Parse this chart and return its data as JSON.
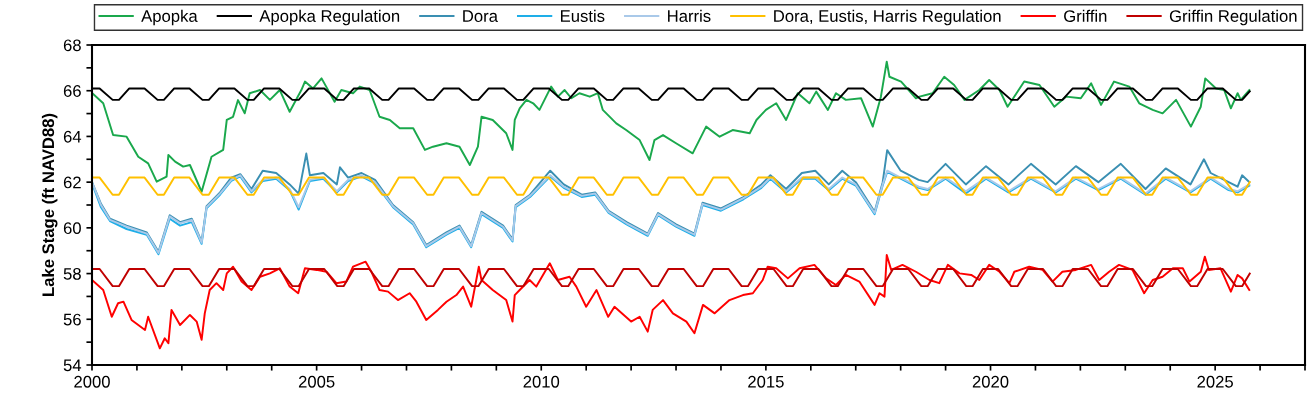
{
  "chart_data": {
    "type": "line",
    "ylabel": "Lake Stage (ft NAVD88)",
    "xlim": [
      2000,
      2027
    ],
    "ylim": [
      54,
      68
    ],
    "xticks": [
      2000,
      {
        "value": 2001,
        "label": null
      },
      {
        "value": 2002,
        "label": null
      },
      {
        "value": 2003,
        "label": null
      },
      {
        "value": 2004,
        "label": null
      },
      2005,
      {
        "value": 2006,
        "label": null
      },
      {
        "value": 2007,
        "label": null
      },
      {
        "value": 2008,
        "label": null
      },
      {
        "value": 2009,
        "label": null
      },
      2010,
      {
        "value": 2011,
        "label": null
      },
      {
        "value": 2012,
        "label": null
      },
      {
        "value": 2013,
        "label": null
      },
      {
        "value": 2014,
        "label": null
      },
      2015,
      {
        "value": 2016,
        "label": null
      },
      {
        "value": 2017,
        "label": null
      },
      {
        "value": 2018,
        "label": null
      },
      {
        "value": 2019,
        "label": null
      },
      2020,
      {
        "value": 2021,
        "label": null
      },
      {
        "value": 2022,
        "label": null
      },
      {
        "value": 2023,
        "label": null
      },
      {
        "value": 2024,
        "label": null
      },
      2025,
      {
        "value": 2026,
        "label": null
      },
      {
        "value": 2027,
        "label": null
      }
    ],
    "yticks": [
      54,
      {
        "value": 55,
        "label": null
      },
      56,
      {
        "value": 57,
        "label": null
      },
      58,
      {
        "value": 59,
        "label": null
      },
      60,
      {
        "value": 61,
        "label": null
      },
      62,
      {
        "value": 63,
        "label": null
      },
      64,
      {
        "value": 65,
        "label": null
      },
      66,
      {
        "value": 67,
        "label": null
      },
      68
    ],
    "grid": false,
    "legend": "top",
    "marker": "none",
    "line_style": "solid",
    "x": [
      2000.0,
      2000.17,
      2000.46,
      2000.6,
      2000.83,
      2001.17,
      2001.46,
      2001.6,
      2001.83,
      2002.17,
      2002.46,
      2002.6,
      2002.83,
      2003.17,
      2003.46,
      2003.6,
      2003.83,
      2004.17,
      2004.46,
      2004.6,
      2004.83,
      2005.17,
      2005.46,
      2005.6,
      2005.83,
      2006.17,
      2006.46,
      2006.6,
      2006.83,
      2007.17,
      2007.46,
      2007.6,
      2007.83,
      2008.17,
      2008.46,
      2008.6,
      2008.83,
      2009.17,
      2009.46,
      2009.6,
      2009.83,
      2010.17,
      2010.46,
      2010.6,
      2010.83,
      2011.17,
      2011.46,
      2011.6,
      2011.83,
      2012.17,
      2012.46,
      2012.6,
      2012.83,
      2013.17,
      2013.46,
      2013.6,
      2013.83,
      2014.17,
      2014.46,
      2014.6,
      2014.83,
      2015.17,
      2015.46,
      2015.6,
      2015.83,
      2016.17,
      2016.46,
      2016.6,
      2016.83,
      2017.17,
      2017.46,
      2017.6,
      2017.83,
      2018.17,
      2018.46,
      2018.6,
      2018.83,
      2019.17,
      2019.46,
      2019.6,
      2019.83,
      2020.17,
      2020.46,
      2020.6,
      2020.83,
      2021.17,
      2021.46,
      2021.6,
      2021.83,
      2022.17,
      2022.46,
      2022.6,
      2022.83,
      2023.17,
      2023.46,
      2023.6,
      2023.83,
      2024.17,
      2024.46,
      2024.6,
      2024.83,
      2025.17,
      2025.46,
      2025.6,
      2025.77
    ],
    "series": [
      {
        "name": "Apopka",
        "color": "#1aa84c",
        "x": [
          2000.0,
          2000.25,
          2000.47,
          2000.77,
          2001.03,
          2001.25,
          2001.44,
          2001.66,
          2001.7,
          2001.85,
          2002.03,
          2002.18,
          2002.44,
          2002.66,
          2002.92,
          2003.0,
          2003.14,
          2003.25,
          2003.4,
          2003.51,
          2003.74,
          2003.96,
          2004.18,
          2004.4,
          2004.66,
          2004.74,
          2004.92,
          2005.11,
          2005.4,
          2005.55,
          2005.81,
          2005.96,
          2006.18,
          2006.4,
          2006.63,
          2006.85,
          2007.15,
          2007.41,
          2007.59,
          2007.89,
          2008.18,
          2008.41,
          2008.59,
          2008.67,
          2008.92,
          2009.22,
          2009.36,
          2009.41,
          2009.52,
          2009.67,
          2009.82,
          2009.96,
          2010.22,
          2010.37,
          2010.52,
          2010.67,
          2010.85,
          2011.08,
          2011.26,
          2011.37,
          2011.67,
          2011.89,
          2012.19,
          2012.41,
          2012.52,
          2012.71,
          2013.0,
          2013.37,
          2013.67,
          2013.97,
          2014.26,
          2014.64,
          2014.79,
          2015.0,
          2015.23,
          2015.45,
          2015.71,
          2015.97,
          2016.12,
          2016.38,
          2016.56,
          2016.78,
          2017.12,
          2017.38,
          2017.56,
          2017.69,
          2017.75,
          2018.01,
          2018.34,
          2018.42,
          2018.71,
          2018.97,
          2019.19,
          2019.42,
          2019.75,
          2019.97,
          2020.2,
          2020.38,
          2020.75,
          2021.09,
          2021.42,
          2021.68,
          2022.01,
          2022.24,
          2022.46,
          2022.75,
          2023.09,
          2023.31,
          2023.61,
          2023.83,
          2024.13,
          2024.46,
          2024.68,
          2024.78,
          2025.02,
          2025.2,
          2025.35,
          2025.5,
          2025.57,
          2025.76
        ],
        "values": [
          65.9,
          65.45,
          64.06,
          63.99,
          63.11,
          62.82,
          62.02,
          62.24,
          63.19,
          62.9,
          62.68,
          62.75,
          61.58,
          63.11,
          63.41,
          64.72,
          64.86,
          65.59,
          65.01,
          65.89,
          66.03,
          65.6,
          66.03,
          65.08,
          66.03,
          66.4,
          66.1,
          66.54,
          65.52,
          66.03,
          65.89,
          66.18,
          66.03,
          64.86,
          64.72,
          64.36,
          64.36,
          63.41,
          63.55,
          63.7,
          63.55,
          62.75,
          63.55,
          64.86,
          64.72,
          64.14,
          63.41,
          64.72,
          65.23,
          65.6,
          65.45,
          65.16,
          66.18,
          65.74,
          66.03,
          65.67,
          65.89,
          65.74,
          65.89,
          65.16,
          64.57,
          64.28,
          63.84,
          62.97,
          63.84,
          64.06,
          63.7,
          63.26,
          64.43,
          63.99,
          64.28,
          64.14,
          64.72,
          65.16,
          65.45,
          64.72,
          65.89,
          65.45,
          65.96,
          65.16,
          65.89,
          65.6,
          65.67,
          64.43,
          65.74,
          67.27,
          66.61,
          66.4,
          65.67,
          65.74,
          65.89,
          66.61,
          66.25,
          65.6,
          66.03,
          66.47,
          66.03,
          65.3,
          66.4,
          66.25,
          65.3,
          65.74,
          65.67,
          66.32,
          65.38,
          66.4,
          66.18,
          65.45,
          65.16,
          65.01,
          65.6,
          64.43,
          65.3,
          66.54,
          66.1,
          66.03,
          65.23,
          65.89,
          65.6,
          66.03
        ]
      },
      {
        "name": "Apopka Regulation",
        "color": "#000000",
        "values": [
          66.1,
          66.1,
          65.6,
          65.6,
          66.1,
          66.1,
          65.6,
          65.6,
          66.1,
          66.1,
          65.6,
          65.6,
          66.1,
          66.1,
          65.6,
          65.6,
          66.1,
          66.1,
          65.6,
          65.6,
          66.1,
          66.1,
          65.6,
          65.6,
          66.1,
          66.1,
          65.6,
          65.6,
          66.1,
          66.1,
          65.6,
          65.6,
          66.1,
          66.1,
          65.6,
          65.6,
          66.1,
          66.1,
          65.6,
          65.6,
          66.1,
          66.1,
          65.6,
          65.6,
          66.1,
          66.1,
          65.6,
          65.6,
          66.1,
          66.1,
          65.6,
          65.6,
          66.1,
          66.1,
          65.6,
          65.6,
          66.1,
          66.1,
          65.6,
          65.6,
          66.1,
          66.1,
          65.6,
          65.6,
          66.1,
          66.1,
          65.6,
          65.6,
          66.1,
          66.1,
          65.6,
          65.6,
          66.1,
          66.1,
          65.6,
          65.6,
          66.1,
          66.1,
          65.6,
          65.6,
          66.1,
          66.1,
          65.6,
          65.6,
          66.1,
          66.1,
          65.6,
          65.6,
          66.1,
          66.1,
          65.6,
          65.6,
          66.1,
          66.1,
          65.6,
          65.6,
          66.1,
          66.1,
          65.6,
          65.6,
          66.1,
          66.1,
          65.6,
          65.6,
          65.97
        ]
      },
      {
        "name": "Dora",
        "color": "#3a8fb2",
        "x": [
          2000.0,
          2000.2,
          2000.4,
          2000.77,
          2001.22,
          2001.48,
          2001.73,
          2001.96,
          2002.22,
          2002.44,
          2002.55,
          2002.85,
          2003.1,
          2003.3,
          2003.55,
          2003.8,
          2004.1,
          2004.4,
          2004.6,
          2004.77,
          2004.85,
          2005.15,
          2005.45,
          2005.52,
          2005.7,
          2006.0,
          2006.3,
          2006.7,
          2007.15,
          2007.44,
          2007.89,
          2008.18,
          2008.44,
          2008.67,
          2009.15,
          2009.36,
          2009.43,
          2009.75,
          2010.2,
          2010.5,
          2010.9,
          2011.2,
          2011.5,
          2011.9,
          2012.37,
          2012.6,
          2013.0,
          2013.41,
          2013.59,
          2014.0,
          2014.5,
          2014.9,
          2015.1,
          2015.45,
          2015.8,
          2016.1,
          2016.4,
          2016.7,
          2017.0,
          2017.42,
          2017.6,
          2017.7,
          2018.0,
          2018.4,
          2018.6,
          2019.0,
          2019.45,
          2019.9,
          2020.4,
          2020.9,
          2021.45,
          2021.9,
          2022.4,
          2022.9,
          2023.45,
          2023.9,
          2024.45,
          2024.75,
          2024.9,
          2025.3,
          2025.5,
          2025.6,
          2025.76
        ],
        "values": [
          62.0,
          61.05,
          60.4,
          60.1,
          59.8,
          58.95,
          60.55,
          60.25,
          60.4,
          59.4,
          60.95,
          61.55,
          62.2,
          62.35,
          61.7,
          62.5,
          62.4,
          61.9,
          61.5,
          63.25,
          62.3,
          62.4,
          61.9,
          62.65,
          62.2,
          62.4,
          62.1,
          61.0,
          60.25,
          59.25,
          59.8,
          60.1,
          59.25,
          60.7,
          60.1,
          59.5,
          61.0,
          61.45,
          62.5,
          61.9,
          61.45,
          61.55,
          60.75,
          60.25,
          59.75,
          60.65,
          60.15,
          59.75,
          61.1,
          60.85,
          61.35,
          61.9,
          62.3,
          61.7,
          62.4,
          62.5,
          61.9,
          62.5,
          62.0,
          60.7,
          62.0,
          63.4,
          62.5,
          62.1,
          62.0,
          62.8,
          61.9,
          62.7,
          61.9,
          62.8,
          61.9,
          62.7,
          62.0,
          62.8,
          61.7,
          62.6,
          61.9,
          63.0,
          62.4,
          62.0,
          61.8,
          62.3,
          62.0
        ]
      },
      {
        "name": "Eustis",
        "color": "#1eaee8",
        "x": [
          2000.0,
          2000.2,
          2000.4,
          2000.77,
          2001.22,
          2001.48,
          2001.73,
          2001.96,
          2002.22,
          2002.44,
          2002.55,
          2002.85,
          2003.1,
          2003.3,
          2003.55,
          2003.8,
          2004.1,
          2004.4,
          2004.6,
          2004.85,
          2005.15,
          2005.45,
          2005.7,
          2006.0,
          2006.3,
          2006.7,
          2007.15,
          2007.44,
          2007.89,
          2008.18,
          2008.44,
          2008.67,
          2009.15,
          2009.36,
          2009.43,
          2009.75,
          2010.2,
          2010.5,
          2010.9,
          2011.2,
          2011.5,
          2011.9,
          2012.37,
          2012.6,
          2013.0,
          2013.41,
          2013.59,
          2014.0,
          2014.5,
          2014.9,
          2015.1,
          2015.45,
          2015.8,
          2016.1,
          2016.4,
          2016.7,
          2017.0,
          2017.42,
          2017.6,
          2017.7,
          2018.0,
          2018.4,
          2018.6,
          2019.0,
          2019.45,
          2019.9,
          2020.4,
          2020.9,
          2021.45,
          2021.9,
          2022.4,
          2022.9,
          2023.45,
          2023.9,
          2024.45,
          2024.9,
          2025.3,
          2025.5,
          2025.76
        ],
        "values": [
          61.95,
          60.9,
          60.3,
          59.95,
          59.7,
          58.85,
          60.4,
          60.1,
          60.25,
          59.3,
          60.85,
          61.45,
          62.05,
          62.25,
          61.55,
          62.05,
          62.15,
          61.65,
          60.8,
          62.05,
          62.15,
          61.55,
          62.05,
          62.25,
          61.95,
          60.9,
          60.15,
          59.15,
          59.7,
          60.0,
          59.15,
          60.6,
          60.0,
          59.4,
          60.9,
          61.35,
          62.25,
          61.75,
          61.35,
          61.45,
          60.65,
          60.15,
          59.65,
          60.55,
          60.05,
          59.65,
          61.0,
          60.75,
          61.25,
          61.75,
          62.15,
          61.55,
          62.15,
          62.15,
          61.65,
          62.15,
          61.85,
          60.6,
          61.85,
          62.45,
          62.15,
          61.75,
          61.65,
          62.15,
          61.5,
          62.15,
          61.55,
          62.15,
          61.55,
          62.15,
          61.65,
          62.15,
          61.45,
          62.15,
          61.55,
          62.15,
          61.65,
          61.55,
          61.85
        ]
      },
      {
        "name": "Harris",
        "color": "#a9c9e9",
        "x": [
          2000.0,
          2000.2,
          2000.4,
          2000.77,
          2001.22,
          2001.48,
          2001.73,
          2001.96,
          2002.22,
          2002.44,
          2002.55,
          2002.85,
          2003.1,
          2003.3,
          2003.55,
          2003.8,
          2004.1,
          2004.4,
          2004.6,
          2004.85,
          2005.15,
          2005.45,
          2005.7,
          2006.0,
          2006.3,
          2006.7,
          2007.15,
          2007.44,
          2007.89,
          2008.18,
          2008.44,
          2008.67,
          2009.15,
          2009.36,
          2009.43,
          2009.75,
          2010.2,
          2010.5,
          2010.9,
          2011.2,
          2011.5,
          2011.9,
          2012.37,
          2012.6,
          2013.0,
          2013.41,
          2013.59,
          2014.0,
          2014.5,
          2014.9,
          2015.1,
          2015.45,
          2015.8,
          2016.1,
          2016.4,
          2016.7,
          2017.0,
          2017.42,
          2017.6,
          2017.7,
          2018.0,
          2018.4,
          2018.6,
          2019.0,
          2019.45,
          2019.9,
          2020.4,
          2020.9,
          2021.45,
          2021.9,
          2022.4,
          2022.9,
          2023.45,
          2023.9,
          2024.45,
          2024.9,
          2025.3,
          2025.5,
          2025.76
        ],
        "values": [
          62.0,
          61.0,
          60.35,
          60.05,
          59.75,
          58.9,
          60.5,
          60.2,
          60.35,
          59.35,
          60.9,
          61.5,
          62.1,
          62.3,
          61.6,
          62.1,
          62.2,
          61.7,
          60.9,
          62.1,
          62.2,
          61.6,
          62.1,
          62.3,
          62.0,
          60.95,
          60.2,
          59.2,
          59.75,
          60.05,
          59.2,
          60.65,
          60.05,
          59.45,
          60.95,
          61.4,
          62.3,
          61.8,
          61.4,
          61.5,
          60.7,
          60.2,
          59.7,
          60.6,
          60.1,
          59.7,
          61.05,
          60.8,
          61.3,
          61.8,
          62.2,
          61.6,
          62.2,
          62.2,
          61.7,
          62.2,
          61.9,
          60.65,
          61.9,
          62.5,
          62.2,
          61.8,
          61.7,
          62.2,
          61.6,
          62.2,
          61.6,
          62.2,
          61.6,
          62.2,
          61.7,
          62.2,
          61.5,
          62.2,
          61.6,
          62.2,
          61.7,
          61.6,
          61.9
        ]
      },
      {
        "name": "Dora, Eustis, Harris Regulation",
        "color": "#ffc000",
        "values": [
          62.2,
          62.2,
          61.45,
          61.45,
          62.2,
          62.2,
          61.45,
          61.45,
          62.2,
          62.2,
          61.45,
          61.45,
          62.2,
          62.2,
          61.45,
          61.45,
          62.2,
          62.2,
          61.45,
          61.45,
          62.2,
          62.2,
          61.45,
          61.45,
          62.2,
          62.2,
          61.45,
          61.45,
          62.2,
          62.2,
          61.45,
          61.45,
          62.2,
          62.2,
          61.45,
          61.45,
          62.2,
          62.2,
          61.45,
          61.45,
          62.2,
          62.2,
          61.45,
          61.45,
          62.2,
          62.2,
          61.45,
          61.45,
          62.2,
          62.2,
          61.45,
          61.45,
          62.2,
          62.2,
          61.45,
          61.45,
          62.2,
          62.2,
          61.45,
          61.45,
          62.2,
          62.2,
          61.45,
          61.45,
          62.2,
          62.2,
          61.45,
          61.45,
          62.2,
          62.2,
          61.45,
          61.45,
          62.2,
          62.2,
          61.45,
          61.45,
          62.2,
          62.2,
          61.45,
          61.45,
          62.2,
          62.2,
          61.45,
          61.45,
          62.2,
          62.2,
          61.45,
          61.45,
          62.2,
          62.2,
          61.45,
          61.45,
          62.2,
          62.2,
          61.45,
          61.45,
          62.2,
          62.2,
          61.45,
          61.45,
          62.2,
          62.2,
          61.45,
          61.45,
          62.0
        ]
      },
      {
        "name": "Griffin",
        "color": "#ff0000",
        "x": [
          2000.0,
          2000.25,
          2000.44,
          2000.58,
          2000.7,
          2000.88,
          2001.03,
          2001.18,
          2001.25,
          2001.51,
          2001.62,
          2001.7,
          2001.77,
          2001.96,
          2002.18,
          2002.33,
          2002.44,
          2002.51,
          2002.62,
          2002.77,
          2002.92,
          2003.0,
          2003.14,
          2003.33,
          2003.55,
          2003.74,
          2003.96,
          2004.18,
          2004.4,
          2004.59,
          2004.74,
          2005.0,
          2005.22,
          2005.44,
          2005.66,
          2005.81,
          2006.09,
          2006.22,
          2006.4,
          2006.59,
          2006.81,
          2007.07,
          2007.22,
          2007.44,
          2007.7,
          2007.89,
          2008.11,
          2008.26,
          2008.44,
          2008.61,
          2008.67,
          2008.92,
          2009.22,
          2009.36,
          2009.41,
          2009.52,
          2009.74,
          2009.89,
          2010.19,
          2010.37,
          2010.63,
          2010.78,
          2011.0,
          2011.23,
          2011.49,
          2011.63,
          2012.0,
          2012.19,
          2012.37,
          2012.48,
          2012.71,
          2012.93,
          2013.23,
          2013.41,
          2013.6,
          2013.86,
          2014.19,
          2014.49,
          2014.71,
          2014.93,
          2015.04,
          2015.23,
          2015.49,
          2015.75,
          2016.08,
          2016.34,
          2016.56,
          2016.78,
          2017.08,
          2017.42,
          2017.53,
          2017.64,
          2017.69,
          2017.79,
          2018.04,
          2018.34,
          2018.64,
          2018.86,
          2019.05,
          2019.31,
          2019.57,
          2019.75,
          2019.97,
          2020.2,
          2020.42,
          2020.53,
          2020.86,
          2021.16,
          2021.38,
          2021.6,
          2021.9,
          2022.24,
          2022.42,
          2022.64,
          2022.86,
          2023.16,
          2023.42,
          2023.61,
          2023.83,
          2024.06,
          2024.28,
          2024.43,
          2024.68,
          2024.77,
          2024.86,
          2025.12,
          2025.35,
          2025.5,
          2025.6,
          2025.76
        ],
        "values": [
          57.72,
          57.28,
          56.11,
          56.7,
          56.77,
          55.97,
          55.75,
          55.53,
          56.11,
          54.73,
          55.17,
          54.95,
          56.41,
          55.75,
          56.19,
          55.9,
          55.1,
          56.26,
          57.28,
          57.58,
          57.28,
          58.01,
          58.3,
          57.65,
          57.28,
          57.86,
          58.01,
          58.23,
          57.43,
          57.14,
          58.23,
          58.16,
          58.08,
          57.58,
          57.65,
          58.3,
          58.52,
          58.08,
          57.28,
          57.21,
          56.84,
          57.14,
          56.77,
          55.97,
          56.41,
          56.77,
          57.06,
          57.43,
          56.55,
          58.3,
          57.72,
          57.28,
          56.84,
          55.9,
          57.06,
          57.28,
          57.72,
          57.43,
          58.45,
          57.72,
          57.86,
          57.43,
          56.55,
          57.28,
          56.11,
          56.55,
          55.9,
          56.11,
          55.46,
          56.41,
          56.84,
          56.26,
          55.9,
          55.39,
          56.63,
          56.26,
          56.84,
          57.06,
          57.14,
          57.72,
          58.3,
          58.23,
          57.79,
          58.23,
          58.38,
          57.79,
          57.5,
          57.94,
          57.65,
          56.63,
          57.14,
          56.99,
          58.81,
          58.16,
          58.38,
          58.08,
          57.72,
          57.58,
          58.38,
          58.01,
          57.94,
          57.72,
          58.38,
          58.08,
          57.58,
          58.08,
          58.3,
          58.16,
          57.65,
          58.08,
          58.16,
          58.38,
          57.72,
          58.08,
          58.38,
          58.16,
          57.14,
          57.72,
          57.86,
          58.23,
          58.23,
          57.65,
          58.08,
          58.74,
          58.16,
          58.23,
          57.21,
          57.94,
          57.79,
          57.28
        ]
      },
      {
        "name": "Griffin Regulation",
        "color": "#c00000",
        "values": [
          58.2,
          58.2,
          57.45,
          57.45,
          58.2,
          58.2,
          57.45,
          57.45,
          58.2,
          58.2,
          57.45,
          57.45,
          58.2,
          58.2,
          57.45,
          57.45,
          58.2,
          58.2,
          57.45,
          57.45,
          58.2,
          58.2,
          57.45,
          57.45,
          58.2,
          58.2,
          57.45,
          57.45,
          58.2,
          58.2,
          57.45,
          57.45,
          58.2,
          58.2,
          57.45,
          57.45,
          58.2,
          58.2,
          57.45,
          57.45,
          58.2,
          58.2,
          57.45,
          57.45,
          58.2,
          58.2,
          57.45,
          57.45,
          58.2,
          58.2,
          57.45,
          57.45,
          58.2,
          58.2,
          57.45,
          57.45,
          58.2,
          58.2,
          57.45,
          57.45,
          58.2,
          58.2,
          57.45,
          57.45,
          58.2,
          58.2,
          57.45,
          57.45,
          58.2,
          58.2,
          57.45,
          57.45,
          58.2,
          58.2,
          57.45,
          57.45,
          58.2,
          58.2,
          57.45,
          57.45,
          58.2,
          58.2,
          57.45,
          57.45,
          58.2,
          58.2,
          57.45,
          57.45,
          58.2,
          58.2,
          57.45,
          57.45,
          58.2,
          58.2,
          57.45,
          57.45,
          58.2,
          58.2,
          57.45,
          57.45,
          58.2,
          58.2,
          57.45,
          57.45,
          58.0
        ]
      }
    ]
  }
}
